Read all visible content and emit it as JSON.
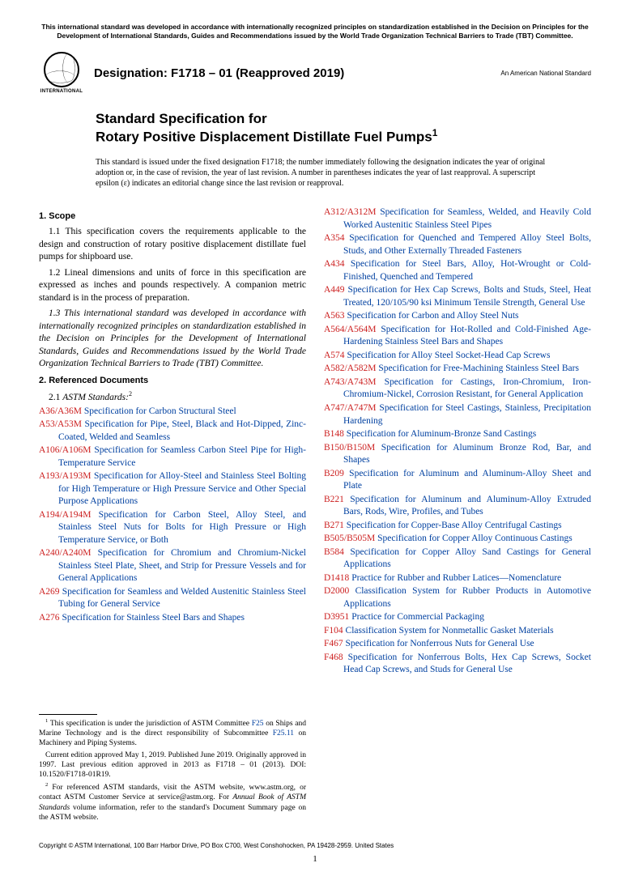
{
  "top_note": "This international standard was developed in accordance with internationally recognized principles on standardization established in the Decision on Principles for the Development of International Standards, Guides and Recommendations issued by the World Trade Organization Technical Barriers to Trade (TBT) Committee.",
  "logo_text": "INTERNATIONAL",
  "designation": "Designation: F1718 – 01 (Reapproved 2019)",
  "an_standard": "An American National Standard",
  "title_pre": "Standard Specification for",
  "title_main": "Rotary Positive Displacement Distillate Fuel Pumps",
  "title_sup": "1",
  "issue_note": "This standard is issued under the fixed designation F1718; the number immediately following the designation indicates the year of original adoption or, in the case of revision, the year of last revision. A number in parentheses indicates the year of last reapproval. A superscript epsilon (ε) indicates an editorial change since the last revision or reapproval.",
  "s1_head": "1. Scope",
  "s1_1": "1.1 This specification covers the requirements applicable to the design and construction of rotary positive displacement distillate fuel pumps for shipboard use.",
  "s1_2": "1.2 Lineal dimensions and units of force in this specification are expressed as inches and pounds respectively. A companion metric standard is in the process of preparation.",
  "s1_3": "1.3 This international standard was developed in accordance with internationally recognized principles on standardization established in the Decision on Principles for the Development of International Standards, Guides and Recommendations issued by the World Trade Organization Technical Barriers to Trade (TBT) Committee.",
  "s2_head": "2. Referenced Documents",
  "s2_1_label": "2.1 ",
  "s2_1_italic": "ASTM Standards:",
  "s2_1_sup": "2",
  "refs_left": [
    {
      "code": "A36/A36M",
      "text": " Specification for Carbon Structural Steel"
    },
    {
      "code": "A53/A53M",
      "text": " Specification for Pipe, Steel, Black and Hot-Dipped, Zinc-Coated, Welded and Seamless"
    },
    {
      "code": "A106/A106M",
      "text": " Specification for Seamless Carbon Steel Pipe for High-Temperature Service"
    },
    {
      "code": "A193/A193M",
      "text": " Specification for Alloy-Steel and Stainless Steel Bolting for High Temperature or High Pressure Service and Other Special Purpose Applications"
    },
    {
      "code": "A194/A194M",
      "text": " Specification for Carbon Steel, Alloy Steel, and Stainless Steel Nuts for Bolts for High Pressure or High Temperature Service, or Both"
    },
    {
      "code": "A240/A240M",
      "text": " Specification for Chromium and Chromium-Nickel Stainless Steel Plate, Sheet, and Strip for Pressure Vessels and for General Applications"
    },
    {
      "code": "A269",
      "text": " Specification for Seamless and Welded Austenitic Stainless Steel Tubing for General Service"
    },
    {
      "code": "A276",
      "text": " Specification for Stainless Steel Bars and Shapes"
    }
  ],
  "refs_right": [
    {
      "code": "A312/A312M",
      "text": " Specification for Seamless, Welded, and Heavily Cold Worked Austenitic Stainless Steel Pipes"
    },
    {
      "code": "A354",
      "text": " Specification for Quenched and Tempered Alloy Steel Bolts, Studs, and Other Externally Threaded Fasteners"
    },
    {
      "code": "A434",
      "text": " Specification for Steel Bars, Alloy, Hot-Wrought or Cold-Finished, Quenched and Tempered"
    },
    {
      "code": "A449",
      "text": " Specification for Hex Cap Screws, Bolts and Studs, Steel, Heat Treated, 120/105/90 ksi Minimum Tensile Strength, General Use"
    },
    {
      "code": "A563",
      "text": " Specification for Carbon and Alloy Steel Nuts"
    },
    {
      "code": "A564/A564M",
      "text": " Specification for Hot-Rolled and Cold-Finished Age-Hardening Stainless Steel Bars and Shapes"
    },
    {
      "code": "A574",
      "text": " Specification for Alloy Steel Socket-Head Cap Screws"
    },
    {
      "code": "A582/A582M",
      "text": " Specification for Free-Machining Stainless Steel Bars"
    },
    {
      "code": "A743/A743M",
      "text": " Specification for Castings, Iron-Chromium, Iron-Chromium-Nickel, Corrosion Resistant, for General Application"
    },
    {
      "code": "A747/A747M",
      "text": " Specification for Steel Castings, Stainless, Precipitation Hardening"
    },
    {
      "code": "B148",
      "text": " Specification for Aluminum-Bronze Sand Castings"
    },
    {
      "code": "B150/B150M",
      "text": " Specification for Aluminum Bronze Rod, Bar, and Shapes"
    },
    {
      "code": "B209",
      "text": " Specification for Aluminum and Aluminum-Alloy Sheet and Plate"
    },
    {
      "code": "B221",
      "text": " Specification for Aluminum and Aluminum-Alloy Extruded Bars, Rods, Wire, Profiles, and Tubes"
    },
    {
      "code": "B271",
      "text": " Specification for Copper-Base Alloy Centrifugal Castings"
    },
    {
      "code": "B505/B505M",
      "text": " Specification for Copper Alloy Continuous Castings"
    },
    {
      "code": "B584",
      "text": " Specification for Copper Alloy Sand Castings for General Applications"
    },
    {
      "code": "D1418",
      "text": " Practice for Rubber and Rubber Latices—Nomenclature"
    },
    {
      "code": "D2000",
      "text": " Classification System for Rubber Products in Automotive Applications"
    },
    {
      "code": "D3951",
      "text": " Practice for Commercial Packaging"
    },
    {
      "code": "F104",
      "text": " Classification System for Nonmetallic Gasket Materials"
    },
    {
      "code": "F467",
      "text": " Specification for Nonferrous Nuts for General Use"
    },
    {
      "code": "F468",
      "text": " Specification for Nonferrous Bolts, Hex Cap Screws, Socket Head Cap Screws, and Studs for General Use"
    }
  ],
  "fn1_a": " This specification is under the jurisdiction of ASTM Committee ",
  "fn1_link1": "F25",
  "fn1_b": " on Ships and Marine Technology and is the direct responsibility of Subcommittee ",
  "fn1_link2": "F25.11",
  "fn1_c": " on Machinery and Piping Systems.",
  "fn1_d": "Current edition approved May 1, 2019. Published June 2019. Originally approved in 1997. Last previous edition approved in 2013 as F1718 – 01 (2013). DOI: 10.1520/F1718-01R19.",
  "fn2_a": " For referenced ASTM standards, visit the ASTM website, www.astm.org, or contact ASTM Customer Service at service@astm.org. For ",
  "fn2_italic": "Annual Book of ASTM Standards",
  "fn2_b": " volume information, refer to the standard's Document Summary page on the ASTM website.",
  "copyright": "Copyright © ASTM International, 100 Barr Harbor Drive, PO Box C700, West Conshohocken, PA 19428-2959. United States",
  "page_num": "1",
  "colors": {
    "link_blue": "#0040a0",
    "code_red": "#cc2020",
    "text": "#000000",
    "background": "#ffffff"
  }
}
